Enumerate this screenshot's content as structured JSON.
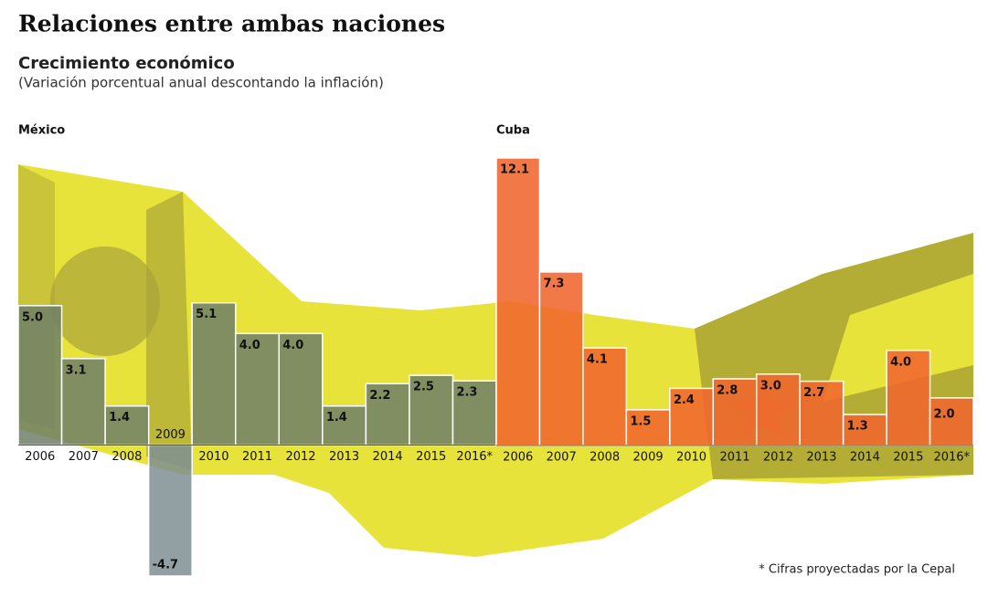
{
  "header": {
    "title": "Relaciones entre ambas naciones",
    "subtitle": "Crecimiento económico",
    "note": "(Variación porcentual anual descontando la inflación)"
  },
  "footnote": "* Cifras proyectadas por la Cepal",
  "chart_data": [
    {
      "type": "bar",
      "title": "México",
      "color": "#6f7f68",
      "negative_color": "#7f8f93",
      "categories": [
        "2006",
        "2007",
        "2008",
        "2009",
        "2010",
        "2011",
        "2012",
        "2013",
        "2014",
        "2015",
        "2016*"
      ],
      "values": [
        5.0,
        3.1,
        1.4,
        -4.7,
        5.1,
        4.0,
        4.0,
        1.4,
        2.2,
        2.5,
        2.3
      ],
      "value_labels": [
        "5.0",
        "3.1",
        "1.4",
        "-4.7",
        "5.1",
        "4.0",
        "4.0",
        "1.4",
        "2.2",
        "2.5",
        "2.3"
      ],
      "ylim": [
        -4.7,
        10.2
      ]
    },
    {
      "type": "bar",
      "title": "Cuba",
      "color": "#f0662e",
      "categories": [
        "2006",
        "2007",
        "2008",
        "2009",
        "2010",
        "2011",
        "2012",
        "2013",
        "2014",
        "2015",
        "2016*"
      ],
      "values": [
        12.1,
        7.3,
        4.1,
        1.5,
        2.4,
        2.8,
        3.0,
        2.7,
        1.3,
        4.0,
        2.0
      ],
      "value_labels": [
        "12.1",
        "7.3",
        "4.1",
        "1.5",
        "2.4",
        "2.8",
        "3.0",
        "2.7",
        "1.3",
        "4.0",
        "2.0"
      ],
      "ylim": [
        -5.5,
        12.1
      ]
    }
  ]
}
